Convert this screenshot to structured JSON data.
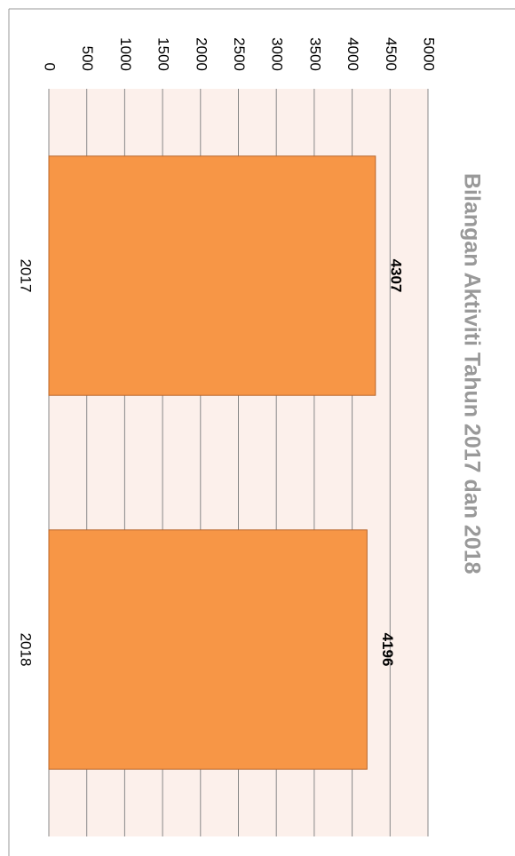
{
  "chart_data": {
    "type": "bar",
    "title": "Bilangan Aktiviti Tahun 2017 dan 2018",
    "categories": [
      "2017",
      "2018"
    ],
    "values": [
      4307,
      4196
    ],
    "color": "#f79646",
    "ylim": [
      0,
      5000
    ],
    "yticks": [
      0,
      500,
      1000,
      1500,
      2000,
      2500,
      3000,
      3500,
      4000,
      4500,
      5000
    ],
    "grid": true
  }
}
